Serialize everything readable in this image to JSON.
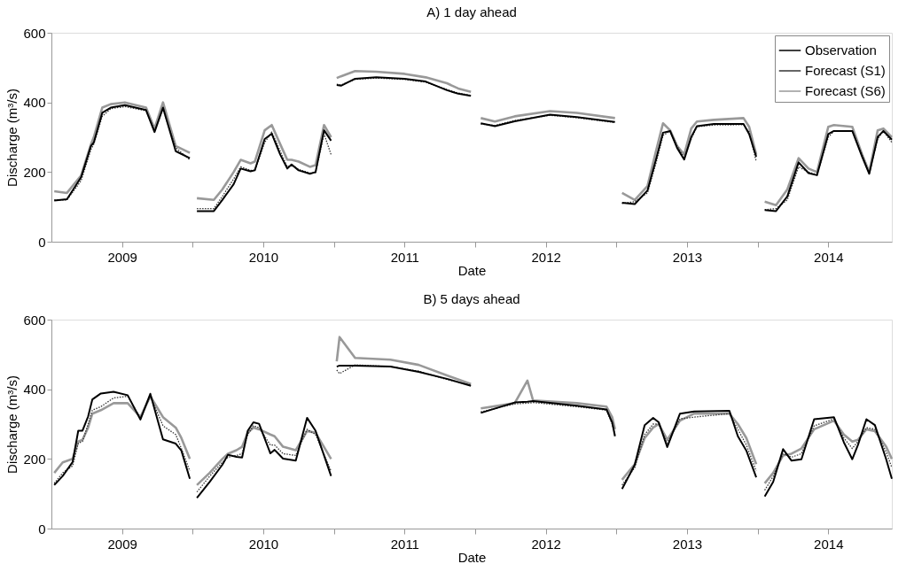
{
  "chart_data": [
    {
      "type": "line",
      "title": "A) 1 day ahead",
      "xlabel": "Date",
      "ylabel": "Discharge (m³/s)",
      "xlim": [
        2009,
        2014.95
      ],
      "ylim": [
        0,
        600
      ],
      "yticks": [
        0,
        200,
        400,
        600
      ],
      "xticks": [
        {
          "value": 2009.5,
          "label": "2009"
        },
        {
          "value": 2010,
          "label": null
        },
        {
          "value": 2010.5,
          "label": "2010"
        },
        {
          "value": 2011,
          "label": null
        },
        {
          "value": 2011.5,
          "label": "2011"
        },
        {
          "value": 2012,
          "label": null
        },
        {
          "value": 2012.5,
          "label": "2012"
        },
        {
          "value": 2013,
          "label": null
        },
        {
          "value": 2013.5,
          "label": "2013"
        },
        {
          "value": 2014,
          "label": null
        },
        {
          "value": 2014.5,
          "label": "2014"
        }
      ],
      "grid": false,
      "legend": "top right",
      "x": [
        2009.02,
        2009.11,
        2009.21,
        2009.28,
        2009.3,
        2009.36,
        2009.42,
        2009.52,
        2009.67,
        2009.73,
        2009.79,
        2009.88,
        2009.98,
        2010.0,
        2010.03,
        2010.15,
        2010.21,
        2010.29,
        2010.34,
        2010.41,
        2010.44,
        2010.51,
        2010.56,
        2010.62,
        2010.67,
        2010.7,
        2010.75,
        2010.83,
        2010.87,
        2010.93,
        2010.98,
        2011.0,
        2011.02,
        2011.05,
        2011.15,
        2011.3,
        2011.5,
        2011.65,
        2011.8,
        2011.88,
        2011.97,
        2012.0,
        2012.04,
        2012.14,
        2012.28,
        2012.53,
        2012.72,
        2012.99,
        2013.0,
        2013.04,
        2013.13,
        2013.22,
        2013.28,
        2013.33,
        2013.38,
        2013.43,
        2013.48,
        2013.53,
        2013.57,
        2013.69,
        2013.9,
        2013.94,
        2013.99,
        2014.0,
        2014.05,
        2014.13,
        2014.21,
        2014.29,
        2014.36,
        2014.42,
        2014.5,
        2014.54,
        2014.67,
        2014.74,
        2014.79,
        2014.85,
        2014.89,
        2014.95
      ],
      "series": [
        {
          "name": "Observation",
          "color": "#000000",
          "line_style": "solid",
          "values": [
            118,
            122,
            185,
            275,
            285,
            370,
            385,
            392,
            378,
            315,
            385,
            260,
            240,
            null,
            88,
            88,
            120,
            165,
            210,
            202,
            205,
            295,
            310,
            250,
            210,
            222,
            205,
            195,
            200,
            320,
            290,
            null,
            450,
            448,
            468,
            472,
            468,
            460,
            435,
            425,
            419,
            null,
            340,
            332,
            346,
            365,
            358,
            344,
            null,
            112,
            108,
            147,
            236,
            313,
            318,
            269,
            236,
            301,
            332,
            338,
            338,
            309,
            244,
            null,
            91,
            88,
            130,
            228,
            197,
            191,
            309,
            318,
            318,
            244,
            195,
            301,
            318,
            293
          ]
        },
        {
          "name": "Forecast (S1)",
          "color": "#333333",
          "line_style": "dotted",
          "values": [
            120,
            120,
            175,
            265,
            280,
            360,
            382,
            388,
            376,
            320,
            380,
            270,
            235,
            null,
            95,
            95,
            130,
            180,
            215,
            205,
            205,
            285,
            315,
            260,
            215,
            220,
            208,
            197,
            198,
            310,
            250,
            null,
            452,
            450,
            466,
            470,
            466,
            458,
            437,
            427,
            420,
            null,
            338,
            334,
            348,
            363,
            356,
            342,
            null,
            110,
            115,
            140,
            225,
            305,
            318,
            275,
            240,
            295,
            330,
            335,
            336,
            315,
            230,
            null,
            92,
            95,
            120,
            215,
            200,
            192,
            300,
            318,
            318,
            250,
            197,
            295,
            318,
            285
          ]
        },
        {
          "name": "Forecast (S6)",
          "color": "#999999",
          "line_style": "solid",
          "values": [
            145,
            140,
            190,
            280,
            300,
            385,
            395,
            400,
            385,
            325,
            400,
            275,
            255,
            null,
            125,
            120,
            150,
            200,
            235,
            225,
            230,
            320,
            335,
            280,
            235,
            235,
            230,
            215,
            220,
            335,
            300,
            null,
            470,
            475,
            490,
            488,
            482,
            472,
            455,
            440,
            430,
            null,
            355,
            345,
            360,
            375,
            370,
            355,
            null,
            140,
            120,
            160,
            260,
            340,
            320,
            275,
            250,
            325,
            345,
            350,
            355,
            330,
            250,
            null,
            115,
            105,
            150,
            240,
            210,
            200,
            330,
            335,
            330,
            250,
            200,
            320,
            325,
            300
          ]
        }
      ]
    },
    {
      "type": "line",
      "title": "B) 5 days ahead",
      "xlabel": "Date",
      "ylabel": "Discharge (m³/s)",
      "xlim": [
        2009,
        2014.95
      ],
      "ylim": [
        0,
        600
      ],
      "yticks": [
        0,
        200,
        400,
        600
      ],
      "xticks": [
        {
          "value": 2009.5,
          "label": "2009"
        },
        {
          "value": 2010,
          "label": null
        },
        {
          "value": 2010.5,
          "label": "2010"
        },
        {
          "value": 2011,
          "label": null
        },
        {
          "value": 2011.5,
          "label": "2011"
        },
        {
          "value": 2012,
          "label": null
        },
        {
          "value": 2012.5,
          "label": "2012"
        },
        {
          "value": 2013,
          "label": null
        },
        {
          "value": 2013.5,
          "label": "2013"
        },
        {
          "value": 2014,
          "label": null
        },
        {
          "value": 2014.5,
          "label": "2014"
        }
      ],
      "grid": false,
      "x": [
        2009.02,
        2009.08,
        2009.15,
        2009.19,
        2009.22,
        2009.26,
        2009.29,
        2009.35,
        2009.44,
        2009.54,
        2009.63,
        2009.7,
        2009.79,
        2009.88,
        2009.92,
        2009.98,
        2010.0,
        2010.03,
        2010.12,
        2010.21,
        2010.25,
        2010.31,
        2010.35,
        2010.39,
        2010.43,
        2010.47,
        2010.55,
        2010.58,
        2010.64,
        2010.73,
        2010.81,
        2010.87,
        2010.98,
        2011.0,
        2011.02,
        2011.04,
        2011.15,
        2011.4,
        2011.6,
        2011.8,
        2011.97,
        2012.0,
        2012.04,
        2012.28,
        2012.37,
        2012.41,
        2012.72,
        2012.93,
        2012.97,
        2012.99,
        2013.0,
        2013.04,
        2013.13,
        2013.2,
        2013.26,
        2013.3,
        2013.36,
        2013.45,
        2013.55,
        2013.8,
        2013.86,
        2013.92,
        2013.99,
        2014.0,
        2014.05,
        2014.11,
        2014.18,
        2014.24,
        2014.31,
        2014.4,
        2014.54,
        2014.61,
        2014.67,
        2014.71,
        2014.77,
        2014.83,
        2014.91,
        2014.95
      ],
      "series": [
        {
          "color": "#000000",
          "line_style": "solid",
          "values": [
            125,
            151,
            191,
            281,
            281,
            322,
            371,
            388,
            393,
            383,
            313,
            387,
            256,
            244,
            224,
            143,
            null,
            88,
            134,
            183,
            212,
            206,
            204,
            281,
            305,
            301,
            216,
            226,
            201,
            195,
            318,
            281,
            151,
            null,
            465,
            468,
            468,
            465,
            450,
            430,
            410,
            null,
            332,
            362,
            364,
            366,
            353,
            342,
            305,
            265,
            null,
            114,
            183,
            297,
            318,
            305,
            234,
            330,
            336,
            338,
            265,
            224,
            147,
            null,
            92,
            134,
            228,
            195,
            199,
            314,
            320,
            248,
            199,
            240,
            314,
            297,
            199,
            143
          ]
        },
        {
          "color": "#333333",
          "line_style": "dotted",
          "values": [
            130,
            160,
            180,
            245,
            250,
            300,
            340,
            350,
            375,
            380,
            318,
            380,
            295,
            270,
            230,
            165,
            null,
            105,
            150,
            190,
            205,
            210,
            215,
            270,
            295,
            290,
            240,
            240,
            215,
            210,
            285,
            270,
            165,
            null,
            455,
            445,
            470,
            465,
            452,
            428,
            412,
            null,
            335,
            358,
            360,
            362,
            350,
            340,
            300,
            270,
            null,
            125,
            175,
            270,
            300,
            300,
            245,
            315,
            320,
            330,
            285,
            240,
            165,
            null,
            110,
            150,
            215,
            205,
            215,
            295,
            315,
            260,
            230,
            250,
            290,
            285,
            220,
            175
          ]
        },
        {
          "color": "#999999",
          "line_style": "solid",
          "values": [
            160,
            190,
            200,
            250,
            255,
            290,
            330,
            340,
            360,
            360,
            320,
            380,
            320,
            290,
            260,
            200,
            null,
            125,
            160,
            200,
            215,
            225,
            235,
            275,
            290,
            285,
            270,
            265,
            235,
            225,
            280,
            275,
            200,
            null,
            480,
            550,
            490,
            485,
            470,
            440,
            415,
            null,
            345,
            360,
            425,
            368,
            360,
            350,
            320,
            285,
            null,
            140,
            185,
            260,
            290,
            300,
            255,
            310,
            330,
            330,
            300,
            260,
            185,
            null,
            130,
            160,
            210,
            215,
            230,
            285,
            310,
            270,
            250,
            255,
            285,
            280,
            235,
            200
          ]
        }
      ]
    }
  ]
}
